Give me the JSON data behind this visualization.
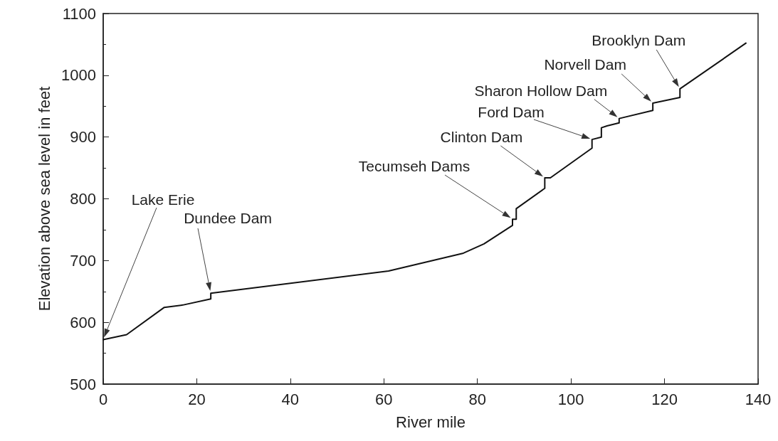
{
  "chart_data": {
    "type": "line",
    "xlabel": "River mile",
    "ylabel": "Elevation above sea level in feet",
    "x": [
      0,
      5,
      13,
      17,
      23,
      23,
      61,
      77,
      81.4,
      87.5,
      87.5,
      88.3,
      88.3,
      94.4,
      94.4,
      95.6,
      104.5,
      104.5,
      106.5,
      106.5,
      107.7,
      110.3,
      110.3,
      117.5,
      117.5,
      123.3,
      123.3,
      137.4
    ],
    "values": [
      572,
      580,
      624,
      628,
      638,
      647,
      683,
      712,
      727,
      757,
      767,
      767,
      784,
      817,
      834,
      834,
      882,
      896,
      900,
      915,
      918,
      923,
      930,
      943,
      955,
      964,
      978,
      1052
    ],
    "color": "#111111",
    "marker": "none",
    "line_style": "solid",
    "grid": false,
    "xlim": [
      0,
      140
    ],
    "xticks": [
      0,
      20,
      40,
      60,
      80,
      100,
      120,
      140
    ],
    "ylim": [
      500,
      1100
    ],
    "yticks": [
      500,
      600,
      700,
      800,
      900,
      1000,
      1100
    ],
    "annotations": [
      "Lake Erie",
      "Dundee Dam",
      "Tecumseh Dams",
      {
        "text": "Clinton Dam",
        "x": 94.4,
        "y": 834
      },
      "Ford Dam",
      {
        "text": "Sharon Hollow Dam",
        "x": 110.3,
        "y": 930
      },
      {
        "text": "Norvell Dam",
        "x": 117.5,
        "y": 955
      },
      {
        "text": "Brooklyn Dam",
        "x": 123.3,
        "y": 978
      }
    ]
  }
}
